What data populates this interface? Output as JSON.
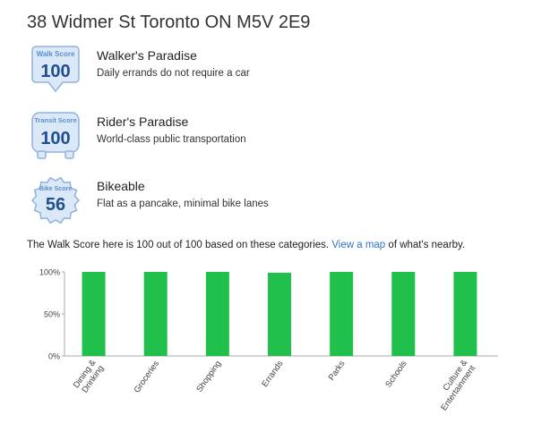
{
  "address": "38 Widmer St Toronto ON M5V 2E9",
  "scores": {
    "walk": {
      "badge_label": "Walk Score",
      "value": "100",
      "title": "Walker's Paradise",
      "description": "Daily errands do not require a car"
    },
    "transit": {
      "badge_label": "Transit Score",
      "value": "100",
      "title": "Rider's Paradise",
      "description": "World-class public transportation"
    },
    "bike": {
      "badge_label": "Bike Score",
      "value": "56",
      "title": "Bikeable",
      "description": "Flat as a pancake, minimal bike lanes"
    }
  },
  "summary": {
    "before": "The Walk Score here is 100 out of 100 based on these categories.",
    "link": "View a map",
    "after": "of what's nearby."
  },
  "colors": {
    "badge_blue": "#2d6db5",
    "badge_fill": "#dbe8f7",
    "bar_green": "#21bf4b",
    "link": "#2e74c3"
  },
  "chart_data": {
    "type": "bar",
    "categories": [
      "Dining & Drinking",
      "Groceries",
      "Shopping",
      "Errands",
      "Parks",
      "Schools",
      "Culture & Entertainment"
    ],
    "values": [
      100,
      100,
      100,
      99,
      100,
      100,
      100
    ],
    "yticks": [
      "0%",
      "50%",
      "100%"
    ],
    "ylim": [
      0,
      100
    ],
    "grid": false
  }
}
